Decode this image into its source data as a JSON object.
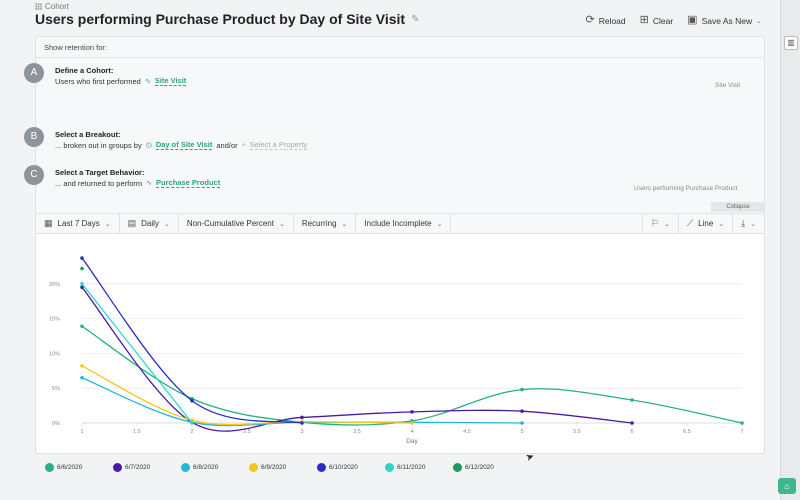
{
  "breadcrumb": {
    "label": "Cohort"
  },
  "header": {
    "title": "Users performing Purchase Product by Day of Site Visit"
  },
  "toolbar": {
    "reload": "Reload",
    "clear": "Clear",
    "save": "Save As New"
  },
  "define": {
    "show_retention": "Show retention for:",
    "step_a": {
      "letter": "A",
      "title": "Define a Cohort:",
      "text": "Users who first performed",
      "event": "Site Visit",
      "side_label": "Site Visit"
    },
    "step_b": {
      "letter": "B",
      "title": "Select a Breakout:",
      "text": "... broken out in groups by",
      "property": "Day of Site Visit",
      "andor": "and/or",
      "placeholder": "Select a Property"
    },
    "step_c": {
      "letter": "C",
      "title": "Select a Target Behavior:",
      "text": "... and returned to perform",
      "event": "Purchase Product",
      "side_label": "Users performing Purchase Product"
    },
    "collapse": "Collapse"
  },
  "filters": {
    "range": "Last 7 Days",
    "interval": "Daily",
    "measure": "Non-Cumulative Percent",
    "mode": "Recurring",
    "incomplete": "Include Incomplete",
    "chart_type": "Line"
  },
  "chart_data": {
    "type": "line",
    "xlabel": "Day",
    "ylabel": "",
    "xlim": [
      1,
      7
    ],
    "ylim": [
      0,
      0.25
    ],
    "x_ticks": [
      "1",
      "1.5",
      "2",
      "2.5",
      "3",
      "3.5",
      "4",
      "4.5",
      "5",
      "5.5",
      "6",
      "6.5",
      "7"
    ],
    "y_ticks": [
      "0%",
      "5%",
      "10%",
      "15%",
      "20%"
    ],
    "series": [
      {
        "name": "6/6/2020",
        "color": "#27b084",
        "x": [
          1,
          2,
          3,
          4,
          5,
          6,
          7
        ],
        "values": [
          0.139,
          0.035,
          0.001,
          0.003,
          0.048,
          0.033,
          0.0
        ]
      },
      {
        "name": "6/7/2020",
        "color": "#4a1aa6",
        "x": [
          1,
          2,
          3,
          4,
          5,
          6
        ],
        "values": [
          0.195,
          0.001,
          0.008,
          0.016,
          0.017,
          0.0
        ]
      },
      {
        "name": "6/8/2020",
        "color": "#22b8d6",
        "x": [
          1,
          2,
          3,
          4,
          5
        ],
        "values": [
          0.065,
          0.001,
          0.001,
          0.001,
          0.0
        ]
      },
      {
        "name": "6/9/2020",
        "color": "#f2c81c",
        "x": [
          1,
          2,
          3,
          4
        ],
        "values": [
          0.082,
          0.004,
          0.002,
          0.0
        ]
      },
      {
        "name": "6/10/2020",
        "color": "#2a2fc1",
        "x": [
          1,
          2,
          3
        ],
        "values": [
          0.237,
          0.032,
          0.0
        ]
      },
      {
        "name": "6/11/2020",
        "color": "#2fd6c4",
        "x": [
          1,
          2
        ],
        "values": [
          0.2,
          0.0
        ]
      },
      {
        "name": "6/12/2020",
        "color": "#1a9a5e",
        "x": [
          1
        ],
        "values": [
          0.222
        ]
      }
    ]
  }
}
